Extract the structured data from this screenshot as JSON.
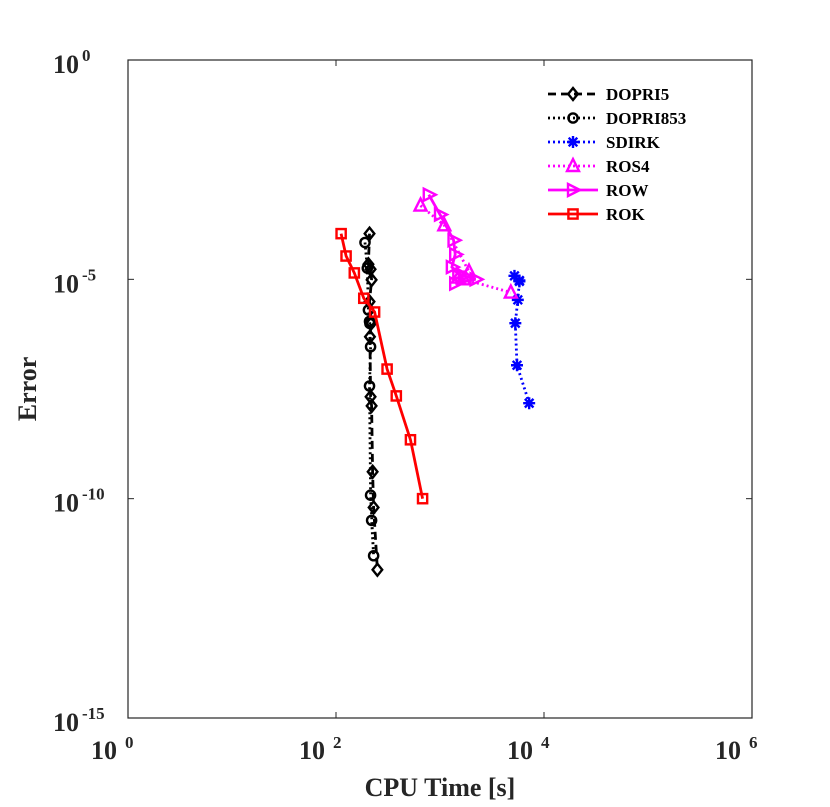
{
  "chart_data": {
    "type": "line",
    "scale": "log-log",
    "title": "",
    "xlabel": "CPU Time [s]",
    "ylabel": "Error",
    "xlim": [
      1,
      1000000
    ],
    "ylim": [
      1e-15,
      1
    ],
    "x_ticks": [
      {
        "value": 1,
        "base": "10",
        "exp": "0"
      },
      {
        "value": 100,
        "base": "10",
        "exp": "2"
      },
      {
        "value": 10000,
        "base": "10",
        "exp": "4"
      },
      {
        "value": 1000000,
        "base": "10",
        "exp": "6"
      }
    ],
    "y_ticks": [
      {
        "value": 1,
        "base": "10",
        "exp": "0"
      },
      {
        "value": 1e-05,
        "base": "10",
        "exp": "-5"
      },
      {
        "value": 1e-10,
        "base": "10",
        "exp": "-10"
      },
      {
        "value": 1e-15,
        "base": "10",
        "exp": "-15"
      }
    ],
    "legend_position": "top-right",
    "series": [
      {
        "name": "DOPRI5",
        "color": "#000000",
        "dash": "dashed",
        "marker": "diamond",
        "x": [
          210,
          205,
          215,
          220,
          210,
          218,
          212,
          215,
          220,
          225,
          230,
          250
        ],
        "y": [
          0.00011,
          2.2e-05,
          1.7e-05,
          9.7e-06,
          3.1e-06,
          1e-06,
          4.9e-07,
          2.1e-08,
          1.3e-08,
          4.1e-10,
          6.3e-11,
          2.4e-12
        ]
      },
      {
        "name": "DOPRI853",
        "color": "#000000",
        "dash": "dotted",
        "marker": "circle",
        "x": [
          190,
          200,
          205,
          210,
          212,
          215,
          210,
          215,
          230,
          220
        ],
        "y": [
          6.9e-05,
          1.8e-05,
          2e-06,
          1.1e-06,
          9.8e-07,
          2.9e-07,
          3.7e-08,
          1.2e-10,
          5e-12,
          3.2e-11
        ]
      },
      {
        "name": "SDIRK",
        "color": "#0000ff",
        "dash": "dotted",
        "marker": "asterisk",
        "x": [
          5200,
          5800,
          5800,
          5600,
          5300,
          5500,
          7200
        ],
        "y": [
          1.2e-05,
          9.4e-06,
          9e-06,
          3.4e-06,
          1e-06,
          1.1e-07,
          1.5e-08
        ]
      },
      {
        "name": "ROS4",
        "color": "#ff00ff",
        "dash": "dotted",
        "marker": "triangle",
        "x": [
          650,
          1100,
          1900,
          1500,
          1700,
          4800
        ],
        "y": [
          0.00048,
          0.00017,
          1.5e-05,
          1.1e-05,
          1e-05,
          5e-06
        ]
      },
      {
        "name": "ROW",
        "color": "#ff00ff",
        "dash": "solid",
        "marker": "right-triangle",
        "x": [
          780,
          1000,
          1350,
          1400,
          1300,
          1500,
          1700,
          2200,
          1400
        ],
        "y": [
          0.00085,
          0.0003,
          7.8e-05,
          3.7e-05,
          1.9e-05,
          1.3e-05,
          1.2e-05,
          1e-05,
          8e-06
        ]
      },
      {
        "name": "ROK",
        "color": "#ff0000",
        "dash": "solid",
        "marker": "square",
        "x": [
          112,
          125,
          150,
          185,
          235,
          310,
          380,
          520,
          680
        ],
        "y": [
          0.00011,
          3.4e-05,
          1.4e-05,
          3.7e-06,
          1.8e-06,
          9e-08,
          2.2e-08,
          2.2e-09,
          1e-10
        ]
      }
    ]
  }
}
